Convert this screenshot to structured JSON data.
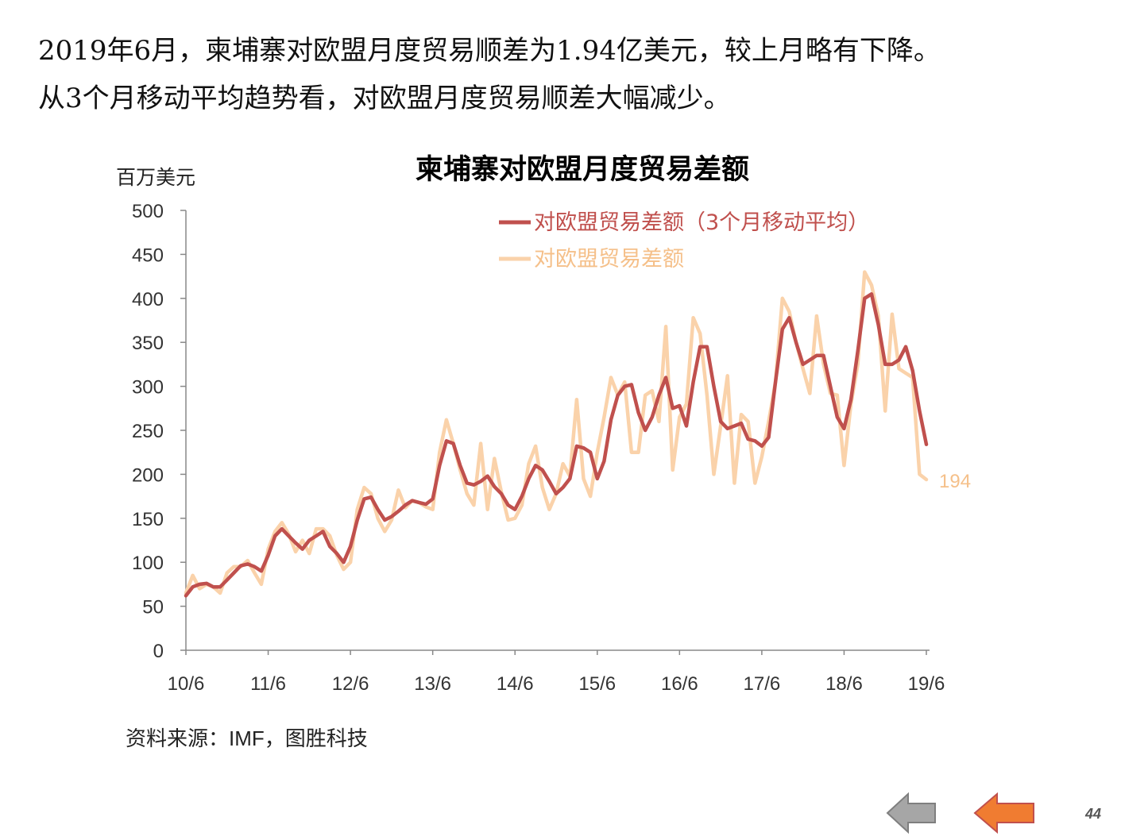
{
  "intro": {
    "line1": "2019年6月，柬埔寨对欧盟月度贸易顺差为1.94亿美元，较上月略有下降。",
    "line2": "从3个月移动平均趋势看，对欧盟月度贸易顺差大幅减少。"
  },
  "source": "资料来源：IMF，图胜科技",
  "page_number": "44",
  "colors": {
    "ma_series": "#c0504d",
    "raw_series": "#fad2aa",
    "raw_label": "#f5c08a",
    "prev_arrow": "#a6a6a6",
    "next_arrow": "#f07c31"
  },
  "icons": {
    "prev": "left-arrow-icon",
    "next": "left-arrow-icon"
  },
  "chart_data": {
    "type": "line",
    "title": "柬埔寨对欧盟月度贸易差额",
    "ylabel": "百万美元",
    "xlabel": "",
    "ylim": [
      0,
      500
    ],
    "yticks": [
      "0",
      "50",
      "100",
      "150",
      "200",
      "250",
      "300",
      "350",
      "400",
      "450",
      "500"
    ],
    "xticks": [
      "10/6",
      "11/6",
      "12/6",
      "13/6",
      "14/6",
      "15/6",
      "16/6",
      "17/6",
      "18/6",
      "19/6"
    ],
    "x_start": "2010-06",
    "x_end": "2019-06",
    "legend_position": "top-right",
    "end_label": "194",
    "series": [
      {
        "name": "对欧盟贸易差额（3个月移动平均）",
        "values": [
          62,
          72,
          75,
          76,
          72,
          72,
          80,
          88,
          96,
          98,
          95,
          90,
          108,
          130,
          138,
          130,
          122,
          115,
          125,
          130,
          135,
          118,
          110,
          100,
          118,
          148,
          172,
          174,
          160,
          148,
          152,
          158,
          165,
          170,
          168,
          166,
          172,
          210,
          238,
          235,
          210,
          190,
          188,
          192,
          198,
          186,
          178,
          165,
          160,
          175,
          195,
          210,
          205,
          192,
          178,
          185,
          195,
          232,
          230,
          225,
          195,
          215,
          262,
          290,
          300,
          302,
          270,
          250,
          265,
          290,
          310,
          275,
          278,
          255,
          305,
          345,
          345,
          300,
          260,
          252,
          255,
          258,
          240,
          238,
          232,
          242,
          305,
          365,
          378,
          350,
          325,
          330,
          335,
          335,
          300,
          265,
          252,
          285,
          340,
          400,
          405,
          370,
          325,
          325,
          330,
          345,
          318,
          272,
          234
        ]
      },
      {
        "name": "对欧盟贸易差额",
        "values": [
          65,
          85,
          70,
          75,
          72,
          65,
          88,
          95,
          95,
          102,
          88,
          75,
          115,
          135,
          145,
          132,
          112,
          125,
          110,
          138,
          138,
          130,
          108,
          92,
          100,
          160,
          185,
          178,
          150,
          135,
          148,
          182,
          162,
          170,
          168,
          163,
          160,
          225,
          262,
          235,
          205,
          178,
          165,
          235,
          160,
          218,
          180,
          148,
          150,
          165,
          212,
          232,
          185,
          160,
          178,
          212,
          198,
          285,
          195,
          175,
          225,
          265,
          310,
          290,
          305,
          225,
          225,
          290,
          295,
          260,
          368,
          205,
          265,
          280,
          378,
          360,
          290,
          200,
          255,
          312,
          190,
          268,
          260,
          190,
          220,
          260,
          305,
          400,
          385,
          350,
          320,
          292,
          380,
          325,
          292,
          290,
          210,
          280,
          325,
          430,
          415,
          380,
          272,
          382,
          320,
          315,
          310,
          200,
          194
        ]
      }
    ]
  }
}
